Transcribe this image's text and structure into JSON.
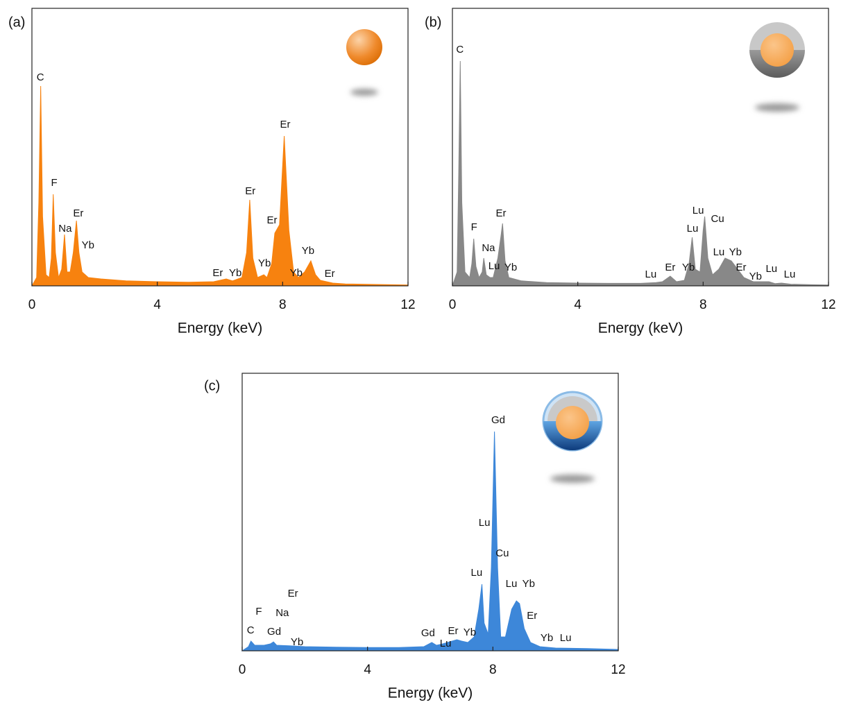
{
  "chart_data": [
    {
      "type": "area",
      "label": "(a)",
      "xlabel": "Energy (keV)",
      "color": "#f7820f",
      "xlim": [
        0,
        12
      ],
      "xticks": [
        0,
        4,
        8,
        12
      ],
      "ylim": [
        0,
        100
      ],
      "x": [
        0,
        0.15,
        0.22,
        0.28,
        0.34,
        0.45,
        0.55,
        0.62,
        0.68,
        0.75,
        0.85,
        0.95,
        1.04,
        1.12,
        1.22,
        1.32,
        1.42,
        1.5,
        1.6,
        1.8,
        2.2,
        3,
        4,
        5,
        5.8,
        6.2,
        6.4,
        6.7,
        6.85,
        6.95,
        7.05,
        7.2,
        7.4,
        7.5,
        7.65,
        7.75,
        7.8,
        7.9,
        8.05,
        8.2,
        8.35,
        8.5,
        8.7,
        8.9,
        9.05,
        9.2,
        9.4,
        9.6,
        10,
        11,
        12
      ],
      "values": [
        0,
        3,
        30,
        72,
        25,
        4,
        3,
        10,
        33,
        12,
        3,
        6,
        18.5,
        5,
        5,
        12,
        23.5,
        12,
        5,
        3,
        2.5,
        1.8,
        1.5,
        1.3,
        1.5,
        2.5,
        1.8,
        3,
        12,
        31,
        10,
        3,
        4,
        3,
        8,
        19,
        20,
        22,
        54,
        20,
        5,
        3,
        5,
        9,
        4,
        2,
        1.5,
        1,
        0.7,
        0.5,
        0.3
      ],
      "annotations": [
        {
          "text": "C",
          "x": 0.27,
          "y": 75
        },
        {
          "text": "F",
          "x": 0.71,
          "y": 37
        },
        {
          "text": "Na",
          "x": 1.06,
          "y": 20.5
        },
        {
          "text": "Er",
          "x": 1.48,
          "y": 26
        },
        {
          "text": "Yb",
          "x": 1.79,
          "y": 14.5
        },
        {
          "text": "Er",
          "x": 5.93,
          "y": 4.5
        },
        {
          "text": "Yb",
          "x": 6.49,
          "y": 4.5
        },
        {
          "text": "Er",
          "x": 6.97,
          "y": 34
        },
        {
          "text": "Yb",
          "x": 7.42,
          "y": 8
        },
        {
          "text": "Er",
          "x": 7.66,
          "y": 23.5
        },
        {
          "text": "Er",
          "x": 8.08,
          "y": 58
        },
        {
          "text": "Yb",
          "x": 8.43,
          "y": 4.5
        },
        {
          "text": "Yb",
          "x": 8.81,
          "y": 12.5
        },
        {
          "text": "Er",
          "x": 9.5,
          "y": 4.3
        }
      ]
    },
    {
      "type": "area",
      "label": "(b)",
      "xlabel": "Energy (keV)",
      "color": "#888888",
      "xlim": [
        0,
        12
      ],
      "xticks": [
        0,
        4,
        8,
        12
      ],
      "ylim": [
        0,
        100
      ],
      "x": [
        0,
        0.15,
        0.2,
        0.25,
        0.3,
        0.4,
        0.55,
        0.62,
        0.68,
        0.75,
        0.85,
        0.95,
        1.0,
        1.08,
        1.2,
        1.3,
        1.45,
        1.55,
        1.6,
        1.68,
        1.8,
        2.2,
        3,
        4,
        5,
        6,
        6.5,
        6.7,
        6.95,
        7.15,
        7.4,
        7.55,
        7.65,
        7.75,
        7.9,
        8.0,
        8.05,
        8.15,
        8.3,
        8.5,
        8.7,
        8.9,
        9.1,
        9.3,
        9.6,
        10.1,
        10.3,
        10.5,
        10.8,
        11.5,
        12
      ],
      "values": [
        0,
        5,
        40,
        81,
        30,
        5,
        3,
        8,
        17,
        7,
        3,
        5,
        10,
        4,
        3,
        3,
        10,
        18,
        22.5,
        9,
        3,
        1.8,
        1.2,
        1,
        0.9,
        0.9,
        1.2,
        1.5,
        3.5,
        1.5,
        2,
        8,
        17.5,
        6,
        5,
        20,
        25,
        10,
        4,
        6,
        10,
        9,
        6,
        3,
        1.5,
        1.5,
        0.8,
        1,
        0.6,
        0.4,
        0.3
      ],
      "annotations": [
        {
          "text": "C",
          "x": 0.24,
          "y": 85
        },
        {
          "text": "F",
          "x": 0.69,
          "y": 21
        },
        {
          "text": "Na",
          "x": 1.15,
          "y": 13.5
        },
        {
          "text": "Lu",
          "x": 1.33,
          "y": 7
        },
        {
          "text": "Er",
          "x": 1.55,
          "y": 26
        },
        {
          "text": "Yb",
          "x": 1.86,
          "y": 6.5
        },
        {
          "text": "Lu",
          "x": 6.33,
          "y": 4
        },
        {
          "text": "Er",
          "x": 6.95,
          "y": 6.5
        },
        {
          "text": "Yb",
          "x": 7.53,
          "y": 6.5
        },
        {
          "text": "Lu",
          "x": 7.84,
          "y": 27
        },
        {
          "text": "Lu",
          "x": 7.66,
          "y": 20.5
        },
        {
          "text": "Cu",
          "x": 8.46,
          "y": 24
        },
        {
          "text": "Lu",
          "x": 8.5,
          "y": 12
        },
        {
          "text": "Yb",
          "x": 9.03,
          "y": 12
        },
        {
          "text": "Er",
          "x": 9.21,
          "y": 6.5
        },
        {
          "text": "Yb",
          "x": 9.67,
          "y": 3.3
        },
        {
          "text": "Lu",
          "x": 10.18,
          "y": 6
        },
        {
          "text": "Lu",
          "x": 10.76,
          "y": 4
        }
      ]
    },
    {
      "type": "area",
      "label": "(c)",
      "xlabel": "Energy (keV)",
      "color": "#3d87d9",
      "xlim": [
        0,
        12
      ],
      "xticks": [
        0,
        4,
        8,
        12
      ],
      "ylim": [
        0,
        100
      ],
      "x": [
        0,
        0.2,
        0.28,
        0.4,
        0.7,
        0.9,
        1.0,
        1.1,
        1.5,
        2,
        3,
        4,
        5,
        5.8,
        6.05,
        6.2,
        6.4,
        6.7,
        6.85,
        7.0,
        7.2,
        7.4,
        7.55,
        7.65,
        7.72,
        7.85,
        7.95,
        8.05,
        8.15,
        8.25,
        8.4,
        8.6,
        8.75,
        8.85,
        9.0,
        9.2,
        9.5,
        10,
        11,
        12
      ],
      "values": [
        0,
        1.5,
        3.5,
        2,
        2,
        2.5,
        3.2,
        2,
        1.8,
        1.5,
        1.3,
        1.2,
        1.2,
        1.5,
        3,
        2,
        2.5,
        3.5,
        4,
        3.5,
        3,
        5,
        15,
        24,
        10,
        6,
        30,
        79,
        30,
        5,
        5,
        15,
        18,
        17,
        8,
        3,
        1.5,
        1,
        0.8,
        0.5
      ],
      "annotations": [
        {
          "text": "Gd",
          "x": 8.17,
          "y": 83
        },
        {
          "text": "Lu",
          "x": 7.73,
          "y": 46
        },
        {
          "text": "Cu",
          "x": 8.3,
          "y": 35
        },
        {
          "text": "Lu",
          "x": 7.48,
          "y": 28
        },
        {
          "text": "Lu",
          "x": 8.59,
          "y": 24
        },
        {
          "text": "Yb",
          "x": 9.14,
          "y": 24
        },
        {
          "text": "Er",
          "x": 9.25,
          "y": 12.5
        },
        {
          "text": "Yb",
          "x": 9.72,
          "y": 4.5
        },
        {
          "text": "Lu",
          "x": 10.32,
          "y": 4.5
        },
        {
          "text": "C",
          "x": 0.27,
          "y": 7.3
        },
        {
          "text": "F",
          "x": 0.53,
          "y": 14
        },
        {
          "text": "Na",
          "x": 1.28,
          "y": 13.5
        },
        {
          "text": "Er",
          "x": 1.62,
          "y": 20.5
        },
        {
          "text": "Gd",
          "x": 1.02,
          "y": 6.8
        },
        {
          "text": "Yb",
          "x": 1.75,
          "y": 3
        },
        {
          "text": "Gd",
          "x": 5.93,
          "y": 6.3
        },
        {
          "text": "Lu",
          "x": 6.49,
          "y": 2.5
        },
        {
          "text": "Er",
          "x": 6.73,
          "y": 7
        },
        {
          "text": "Yb",
          "x": 7.26,
          "y": 6.5
        }
      ]
    }
  ]
}
